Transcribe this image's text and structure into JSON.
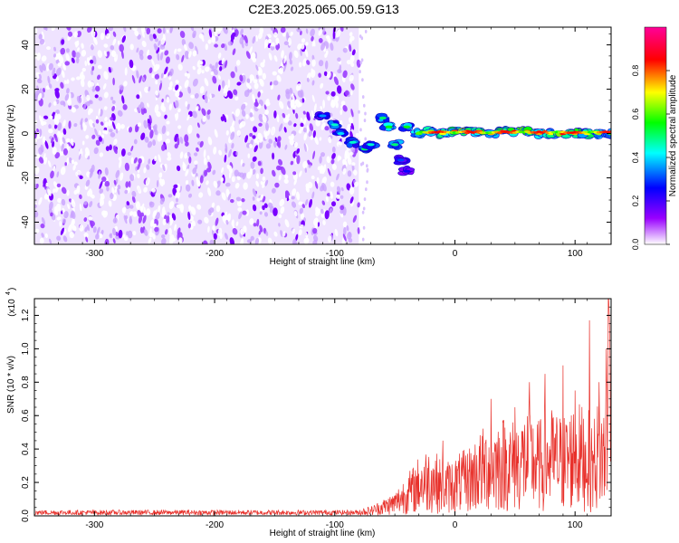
{
  "title": "C2E3.2025.065.00.59.G13",
  "chart_data": [
    {
      "type": "heatmap",
      "xlabel": "Height of straight line (km)",
      "ylabel": "Frequency (Hz)",
      "xlim": [
        -350,
        130
      ],
      "ylim": [
        -50,
        48
      ],
      "xticks": [
        "-300",
        "-200",
        "-100",
        "0",
        "100"
      ],
      "yticks": [
        "-40",
        "-20",
        "0",
        "20",
        "40"
      ],
      "colorbar": {
        "label": "Normalized spectral amplitude",
        "range": [
          0.0,
          1.0
        ],
        "ticks": [
          "0.0",
          "0.2",
          "0.4",
          "0.6",
          "0.8"
        ],
        "colors": [
          "#ffffff",
          "#9900ff",
          "#0000ff",
          "#00ffff",
          "#00ff00",
          "#ffff00",
          "#ff0000",
          "#ff0099"
        ]
      },
      "noise_region": {
        "x": [
          -350,
          -80
        ],
        "amplitude": 0.15
      },
      "signal_track": [
        {
          "x": -110,
          "y": 8,
          "amplitude": 0.35
        },
        {
          "x": -100,
          "y": 4,
          "amplitude": 0.45
        },
        {
          "x": -95,
          "y": 0,
          "amplitude": 0.4
        },
        {
          "x": -85,
          "y": -4,
          "amplitude": 0.45
        },
        {
          "x": -75,
          "y": -7,
          "amplitude": 0.5
        },
        {
          "x": -70,
          "y": -5,
          "amplitude": 0.45
        },
        {
          "x": -60,
          "y": 7,
          "amplitude": 0.5
        },
        {
          "x": -55,
          "y": 3,
          "amplitude": 0.55
        },
        {
          "x": -50,
          "y": -5,
          "amplitude": 0.5
        },
        {
          "x": -45,
          "y": -12,
          "amplitude": 0.3
        },
        {
          "x": -40,
          "y": -17,
          "amplitude": 0.25
        },
        {
          "x": -40,
          "y": 3,
          "amplitude": 0.55
        },
        {
          "x": -30,
          "y": 0,
          "amplitude": 0.6
        },
        {
          "x": -20,
          "y": 1,
          "amplitude": 0.65
        },
        {
          "x": -10,
          "y": 0,
          "amplitude": 0.7
        },
        {
          "x": 0,
          "y": 1,
          "amplitude": 0.8
        },
        {
          "x": 10,
          "y": 1,
          "amplitude": 0.85
        },
        {
          "x": 20,
          "y": 1,
          "amplitude": 0.8
        },
        {
          "x": 30,
          "y": 0,
          "amplitude": 0.75
        },
        {
          "x": 40,
          "y": 1,
          "amplitude": 0.8
        },
        {
          "x": 50,
          "y": 1,
          "amplitude": 0.85
        },
        {
          "x": 60,
          "y": 1,
          "amplitude": 0.8
        },
        {
          "x": 70,
          "y": 0,
          "amplitude": 0.75
        },
        {
          "x": 80,
          "y": 0,
          "amplitude": 0.7
        },
        {
          "x": 90,
          "y": 0,
          "amplitude": 0.85
        },
        {
          "x": 100,
          "y": 0,
          "amplitude": 0.75
        },
        {
          "x": 110,
          "y": 0,
          "amplitude": 0.7
        },
        {
          "x": 120,
          "y": 0,
          "amplitude": 0.65
        },
        {
          "x": 130,
          "y": 0,
          "amplitude": 0.6
        }
      ]
    },
    {
      "type": "line",
      "xlabel": "Height of straight line (km)",
      "ylabel": "SNR (10 * v/v)",
      "multiplier_label": "(x10",
      "multiplier_exponent": "4",
      "xlim": [
        -350,
        130
      ],
      "ylim": [
        0,
        1.3
      ],
      "xticks": [
        "-300",
        "-200",
        "-100",
        "0",
        "100"
      ],
      "yticks": [
        "0.0",
        "0.2",
        "0.4",
        "0.6",
        "0.8",
        "1.0",
        "1.2"
      ],
      "color": "#e8302a",
      "series": [
        {
          "x": [
            -350,
            -250,
            -150,
            -100,
            -80,
            -70,
            -60,
            -50,
            -45,
            -40,
            -35,
            -30,
            -20,
            -10,
            0,
            10,
            20,
            30,
            40,
            50,
            60,
            70,
            80,
            90,
            100,
            110,
            115,
            120,
            125,
            128,
            130
          ],
          "y": [
            0.02,
            0.02,
            0.02,
            0.02,
            0.03,
            0.04,
            0.07,
            0.1,
            0.14,
            0.18,
            0.2,
            0.25,
            0.3,
            0.22,
            0.25,
            0.28,
            0.35,
            0.4,
            0.42,
            0.4,
            0.45,
            0.4,
            0.45,
            0.42,
            0.48,
            0.45,
            0.4,
            0.5,
            0.45,
            1.3,
            0.6
          ],
          "peaks": [
            {
              "x": -35,
              "y": 0.28
            },
            {
              "x": -10,
              "y": 0.45
            },
            {
              "x": 30,
              "y": 0.7
            },
            {
              "x": 50,
              "y": 0.65
            },
            {
              "x": 62,
              "y": 0.8
            },
            {
              "x": 75,
              "y": 0.85
            },
            {
              "x": 90,
              "y": 0.9
            },
            {
              "x": 100,
              "y": 0.75
            },
            {
              "x": 112,
              "y": 1.17
            },
            {
              "x": 120,
              "y": 0.8
            },
            {
              "x": 126,
              "y": 1.0
            },
            {
              "x": 128,
              "y": 1.3
            }
          ]
        }
      ]
    }
  ]
}
